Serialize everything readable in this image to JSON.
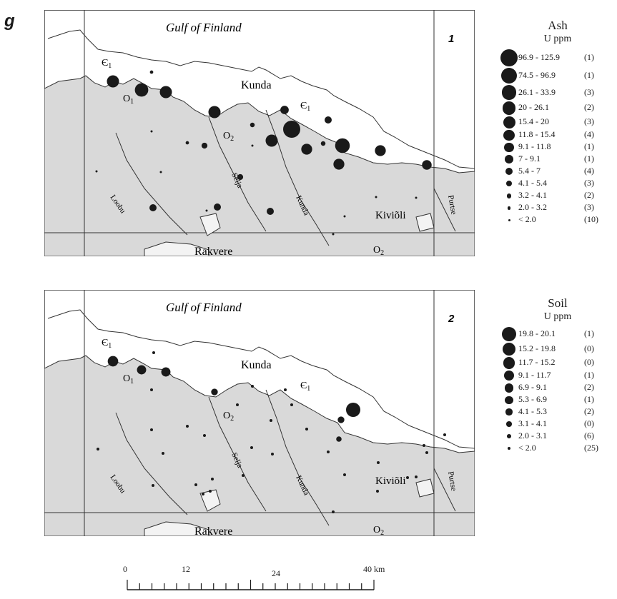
{
  "panel_letter": "g",
  "maps": [
    {
      "number": "1",
      "labels": {
        "gulf": "Gulf of Finland",
        "kunda_town": "Kunda",
        "kiviõli": "Kiviõli",
        "rakvere": "Rakvere",
        "o1": "O",
        "o1_sub": "1",
        "o2_mid": "O",
        "o2_mid_sub": "2",
        "o2_bottom": "O",
        "o2_bottom_sub": "2",
        "e1_west": "Є",
        "e1_west_sub": "1",
        "e1_east": "Є",
        "e1_east_sub": "1",
        "river_loobu": "Loobu",
        "river_selja": "Selja",
        "river_kunda": "Kunda",
        "river_purtse": "Purtse"
      }
    },
    {
      "number": "2",
      "labels": {
        "gulf": "Gulf of Finland",
        "kunda_town": "Kunda",
        "kiviõli": "Kiviõli",
        "rakvere": "Rakvere",
        "o1": "O",
        "o1_sub": "1",
        "o2_mid": "O",
        "o2_mid_sub": "2",
        "o2_bottom": "O",
        "o2_bottom_sub": "2",
        "e1_west": "Є",
        "e1_west_sub": "1",
        "e1_east": "Є",
        "e1_east_sub": "1",
        "river_loobu": "Loobu",
        "river_selja": "Selja",
        "river_kunda": "Kunda",
        "river_purtse": "Purtse"
      }
    }
  ],
  "legends": [
    {
      "title": "Ash",
      "unit": "U ppm",
      "classes": [
        {
          "range": "96.9 - 125.9",
          "count": "(1)"
        },
        {
          "range": "74.5 - 96.9",
          "count": "(1)"
        },
        {
          "range": "26.1 - 33.9",
          "count": "(3)"
        },
        {
          "range": "20 - 26.1",
          "count": "(2)"
        },
        {
          "range": "15.4 - 20",
          "count": "(3)"
        },
        {
          "range": "11.8 - 15.4",
          "count": "(4)"
        },
        {
          "range": "9.1 - 11.8",
          "count": "(1)"
        },
        {
          "range": "7 - 9.1",
          "count": "(1)"
        },
        {
          "range": "5.4 - 7",
          "count": "(4)"
        },
        {
          "range": "4.1 - 5.4",
          "count": "(3)"
        },
        {
          "range": "3.2 - 4.1",
          "count": "(2)"
        },
        {
          "range": "2.0 - 3.2",
          "count": "(3)"
        },
        {
          "range": "< 2.0",
          "count": "(10)"
        }
      ]
    },
    {
      "title": "Soil",
      "unit": "U ppm",
      "classes": [
        {
          "range": "19.8 - 20.1",
          "count": "(1)"
        },
        {
          "range": "15.2 - 19.8",
          "count": "(0)"
        },
        {
          "range": "11.7 - 15.2",
          "count": "(0)"
        },
        {
          "range": "9.1 - 11.7",
          "count": "(1)"
        },
        {
          "range": "6.9 - 9.1",
          "count": "(2)"
        },
        {
          "range": "5.3 - 6.9",
          "count": "(1)"
        },
        {
          "range": "4.1 - 5.3",
          "count": "(2)"
        },
        {
          "range": "3.1 - 4.1",
          "count": "(0)"
        },
        {
          "range": "2.0 - 3.1",
          "count": "(6)"
        },
        {
          "range": "< 2.0",
          "count": "(25)"
        }
      ]
    }
  ],
  "scale": {
    "ticks": [
      "0",
      "12",
      "24",
      "40 km"
    ]
  },
  "colors": {
    "land": "#d9d9d9",
    "sea": "#ffffff",
    "symbol": "#1a1a1a",
    "outline": "#333333"
  }
}
